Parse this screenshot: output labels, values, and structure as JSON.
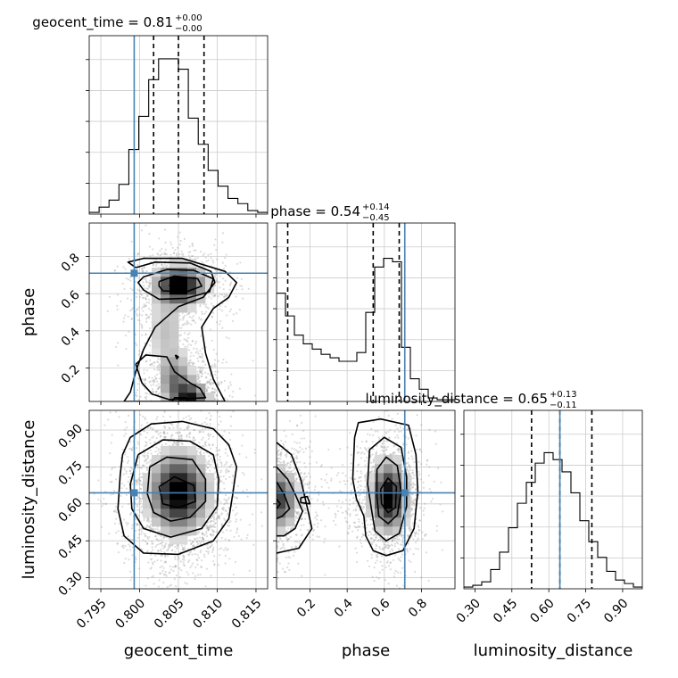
{
  "chart_data": {
    "type": "corner",
    "parameters": [
      "geocent_time",
      "phase",
      "luminosity_distance"
    ],
    "titles": [
      {
        "param": "geocent_time",
        "median": "0.81",
        "plus": "+0.00",
        "minus": "−0.00"
      },
      {
        "param": "phase",
        "median": "0.54",
        "plus": "+0.14",
        "minus": "−0.45"
      },
      {
        "param": "luminosity_distance",
        "median": "0.65",
        "plus": "+0.13",
        "minus": "−0.11"
      }
    ],
    "axes": {
      "geocent_time": {
        "range": [
          0.7935,
          0.8165
        ],
        "ticks": [
          0.795,
          0.8,
          0.805,
          0.81,
          0.815
        ],
        "tick_labels": [
          "0.795",
          "0.800",
          "0.805",
          "0.810",
          "0.815"
        ]
      },
      "phase": {
        "range": [
          0.02,
          0.98
        ],
        "ticks": [
          0.2,
          0.4,
          0.6,
          0.8
        ],
        "tick_labels": [
          "0.2",
          "0.4",
          "0.6",
          "0.8"
        ]
      },
      "luminosity_distance": {
        "range": [
          0.255,
          0.98
        ],
        "ticks": [
          0.3,
          0.45,
          0.6,
          0.75,
          0.9
        ],
        "tick_labels": [
          "0.30",
          "0.45",
          "0.60",
          "0.75",
          "0.90"
        ]
      }
    },
    "truths": {
      "geocent_time": 0.7993,
      "phase": 0.71,
      "luminosity_distance": 0.645
    },
    "quantiles": {
      "geocent_time": [
        0.8018,
        0.805,
        0.8083
      ],
      "phase": [
        0.08,
        0.54,
        0.68
      ],
      "luminosity_distance": [
        0.53,
        0.645,
        0.775
      ]
    },
    "histograms": {
      "geocent_time": [
        0.01,
        0.04,
        0.08,
        0.17,
        0.37,
        0.56,
        0.77,
        0.89,
        0.89,
        0.83,
        0.55,
        0.4,
        0.25,
        0.16,
        0.09,
        0.06,
        0.02,
        0.01
      ],
      "phase": [
        0.62,
        0.49,
        0.38,
        0.33,
        0.3,
        0.27,
        0.25,
        0.23,
        0.23,
        0.28,
        0.51,
        0.77,
        0.82,
        0.8,
        0.31,
        0.13,
        0.07,
        0.02,
        0.01,
        0.01
      ],
      "luminosity_distance": [
        0.01,
        0.02,
        0.04,
        0.11,
        0.21,
        0.35,
        0.49,
        0.61,
        0.72,
        0.78,
        0.74,
        0.67,
        0.55,
        0.39,
        0.27,
        0.18,
        0.1,
        0.05,
        0.03,
        0.01
      ]
    },
    "pair_contours": {
      "phase_vs_geocent_time": [
        [
          [
            0.7995,
            0.74
          ],
          [
            0.802,
            0.77
          ],
          [
            0.8065,
            0.765
          ],
          [
            0.8092,
            0.72
          ],
          [
            0.8097,
            0.66
          ],
          [
            0.8082,
            0.58
          ],
          [
            0.805,
            0.53
          ],
          [
            0.802,
            0.42
          ],
          [
            0.8005,
            0.3
          ],
          [
            0.7995,
            0.18
          ],
          [
            0.7988,
            0.07
          ],
          [
            0.798,
            0.02
          ],
          [
            0.811,
            0.02
          ],
          [
            0.8095,
            0.14
          ],
          [
            0.8085,
            0.28
          ],
          [
            0.808,
            0.42
          ],
          [
            0.8095,
            0.52
          ],
          [
            0.8115,
            0.58
          ],
          [
            0.8125,
            0.66
          ],
          [
            0.811,
            0.72
          ],
          [
            0.8055,
            0.79
          ],
          [
            0.8005,
            0.79
          ],
          [
            0.7985,
            0.77
          ],
          [
            0.7995,
            0.74
          ]
        ],
        [
          [
            0.8005,
            0.69
          ],
          [
            0.8035,
            0.73
          ],
          [
            0.807,
            0.725
          ],
          [
            0.8095,
            0.68
          ],
          [
            0.809,
            0.61
          ],
          [
            0.806,
            0.575
          ],
          [
            0.8025,
            0.57
          ],
          [
            0.8005,
            0.62
          ],
          [
            0.7998,
            0.66
          ],
          [
            0.8005,
            0.69
          ]
        ],
        [
          [
            0.8025,
            0.665
          ],
          [
            0.8045,
            0.695
          ],
          [
            0.8075,
            0.68
          ],
          [
            0.808,
            0.64
          ],
          [
            0.806,
            0.61
          ],
          [
            0.803,
            0.615
          ],
          [
            0.8025,
            0.64
          ],
          [
            0.8025,
            0.665
          ]
        ],
        [
          [
            0.8038,
            0.645
          ],
          [
            0.805,
            0.655
          ],
          [
            0.806,
            0.645
          ],
          [
            0.805,
            0.632
          ],
          [
            0.8038,
            0.645
          ]
        ],
        [
          [
            0.7995,
            0.22
          ],
          [
            0.8008,
            0.27
          ],
          [
            0.8035,
            0.26
          ],
          [
            0.8045,
            0.18
          ],
          [
            0.8065,
            0.12
          ],
          [
            0.8078,
            0.09
          ],
          [
            0.8085,
            0.04
          ],
          [
            0.8038,
            0.03
          ],
          [
            0.8016,
            0.06
          ],
          [
            0.8003,
            0.12
          ],
          [
            0.7995,
            0.22
          ]
        ],
        [
          [
            0.8042,
            0.02
          ],
          [
            0.8045,
            0.04
          ],
          [
            0.806,
            0.04
          ],
          [
            0.8062,
            0.02
          ]
        ],
        [
          [
            0.8046,
            0.27
          ],
          [
            0.805,
            0.26
          ],
          [
            0.8048,
            0.25
          ],
          [
            0.8046,
            0.27
          ]
        ]
      ],
      "luminosity_distance_vs_geocent_time": [
        [
          [
            0.7988,
            0.87
          ],
          [
            0.8015,
            0.925
          ],
          [
            0.8055,
            0.935
          ],
          [
            0.8095,
            0.905
          ],
          [
            0.8115,
            0.84
          ],
          [
            0.8125,
            0.75
          ],
          [
            0.812,
            0.64
          ],
          [
            0.8115,
            0.54
          ],
          [
            0.8095,
            0.45
          ],
          [
            0.805,
            0.395
          ],
          [
            0.8005,
            0.4
          ],
          [
            0.798,
            0.47
          ],
          [
            0.7972,
            0.58
          ],
          [
            0.7975,
            0.72
          ],
          [
            0.7978,
            0.8
          ],
          [
            0.7988,
            0.87
          ]
        ],
        [
          [
            0.7998,
            0.8
          ],
          [
            0.803,
            0.86
          ],
          [
            0.8065,
            0.855
          ],
          [
            0.8095,
            0.8
          ],
          [
            0.8102,
            0.7
          ],
          [
            0.81,
            0.59
          ],
          [
            0.808,
            0.5
          ],
          [
            0.804,
            0.465
          ],
          [
            0.8005,
            0.5
          ],
          [
            0.799,
            0.58
          ],
          [
            0.7988,
            0.68
          ],
          [
            0.7998,
            0.8
          ]
        ],
        [
          [
            0.8013,
            0.75
          ],
          [
            0.8035,
            0.79
          ],
          [
            0.8068,
            0.78
          ],
          [
            0.8085,
            0.7
          ],
          [
            0.8085,
            0.61
          ],
          [
            0.8065,
            0.545
          ],
          [
            0.804,
            0.53
          ],
          [
            0.8018,
            0.565
          ],
          [
            0.801,
            0.64
          ],
          [
            0.8013,
            0.75
          ]
        ],
        [
          [
            0.8025,
            0.67
          ],
          [
            0.8045,
            0.71
          ],
          [
            0.807,
            0.675
          ],
          [
            0.8072,
            0.61
          ],
          [
            0.805,
            0.585
          ],
          [
            0.803,
            0.6
          ],
          [
            0.8025,
            0.67
          ]
        ]
      ],
      "luminosity_distance_vs_phase": [
        [
          [
            0.02,
            0.85
          ],
          [
            0.1,
            0.8
          ],
          [
            0.15,
            0.7
          ],
          [
            0.19,
            0.57
          ],
          [
            0.21,
            0.5
          ],
          [
            0.14,
            0.42
          ],
          [
            0.02,
            0.4
          ]
        ],
        [
          [
            0.02,
            0.75
          ],
          [
            0.08,
            0.7
          ],
          [
            0.12,
            0.64
          ],
          [
            0.16,
            0.57
          ],
          [
            0.12,
            0.5
          ],
          [
            0.06,
            0.47
          ],
          [
            0.02,
            0.47
          ]
        ],
        [
          [
            0.02,
            0.69
          ],
          [
            0.06,
            0.64
          ],
          [
            0.09,
            0.58
          ],
          [
            0.05,
            0.55
          ],
          [
            0.02,
            0.54
          ]
        ],
        [
          [
            0.02,
            0.62
          ],
          [
            0.04,
            0.6
          ],
          [
            0.02,
            0.58
          ]
        ],
        [
          [
            0.44,
            0.87
          ],
          [
            0.46,
            0.93
          ],
          [
            0.58,
            0.945
          ],
          [
            0.73,
            0.92
          ],
          [
            0.77,
            0.8
          ],
          [
            0.78,
            0.65
          ],
          [
            0.76,
            0.5
          ],
          [
            0.7,
            0.41
          ],
          [
            0.61,
            0.39
          ],
          [
            0.54,
            0.41
          ],
          [
            0.5,
            0.47
          ],
          [
            0.49,
            0.55
          ],
          [
            0.45,
            0.62
          ],
          [
            0.43,
            0.7
          ],
          [
            0.44,
            0.87
          ]
        ],
        [
          [
            0.52,
            0.82
          ],
          [
            0.6,
            0.87
          ],
          [
            0.69,
            0.83
          ],
          [
            0.72,
            0.71
          ],
          [
            0.72,
            0.59
          ],
          [
            0.68,
            0.48
          ],
          [
            0.61,
            0.45
          ],
          [
            0.55,
            0.49
          ],
          [
            0.53,
            0.58
          ],
          [
            0.51,
            0.68
          ],
          [
            0.52,
            0.82
          ]
        ],
        [
          [
            0.56,
            0.74
          ],
          [
            0.61,
            0.79
          ],
          [
            0.67,
            0.755
          ],
          [
            0.69,
            0.65
          ],
          [
            0.67,
            0.555
          ],
          [
            0.62,
            0.52
          ],
          [
            0.57,
            0.55
          ],
          [
            0.56,
            0.63
          ],
          [
            0.56,
            0.74
          ]
        ],
        [
          [
            0.58,
            0.66
          ],
          [
            0.62,
            0.705
          ],
          [
            0.665,
            0.67
          ],
          [
            0.66,
            0.585
          ],
          [
            0.62,
            0.565
          ],
          [
            0.585,
            0.6
          ],
          [
            0.58,
            0.66
          ]
        ],
        [
          [
            0.15,
            0.625
          ],
          [
            0.185,
            0.63
          ],
          [
            0.2,
            0.6
          ],
          [
            0.15,
            0.605
          ],
          [
            0.15,
            0.625
          ]
        ]
      ]
    },
    "density_blobs": {
      "phase_vs_geocent_time": [
        {
          "x": 0.8052,
          "y": 0.645,
          "sx": 0.0019,
          "sy": 0.062,
          "w": 1.0
        },
        {
          "x": 0.8065,
          "y": 0.03,
          "sx": 0.0014,
          "sy": 0.06,
          "w": 0.8
        },
        {
          "x": 0.8045,
          "y": 0.14,
          "sx": 0.0013,
          "sy": 0.08,
          "w": 0.45
        },
        {
          "x": 0.8035,
          "y": 0.4,
          "sx": 0.0016,
          "sy": 0.12,
          "w": 0.22
        }
      ],
      "luminosity_distance_vs_geocent_time": [
        {
          "x": 0.805,
          "y": 0.645,
          "sx": 0.0022,
          "sy": 0.095,
          "w": 1.0
        }
      ],
      "luminosity_distance_vs_phase": [
        {
          "x": 0.625,
          "y": 0.63,
          "sx": 0.055,
          "sy": 0.085,
          "w": 1.0
        },
        {
          "x": 0.04,
          "y": 0.62,
          "sx": 0.05,
          "sy": 0.075,
          "w": 0.7
        },
        {
          "x": 0.3,
          "y": 0.62,
          "sx": 0.14,
          "sy": 0.08,
          "w": 0.12
        }
      ]
    },
    "truth_color": "#4682b4",
    "line_color": "#000000",
    "grid": true
  }
}
